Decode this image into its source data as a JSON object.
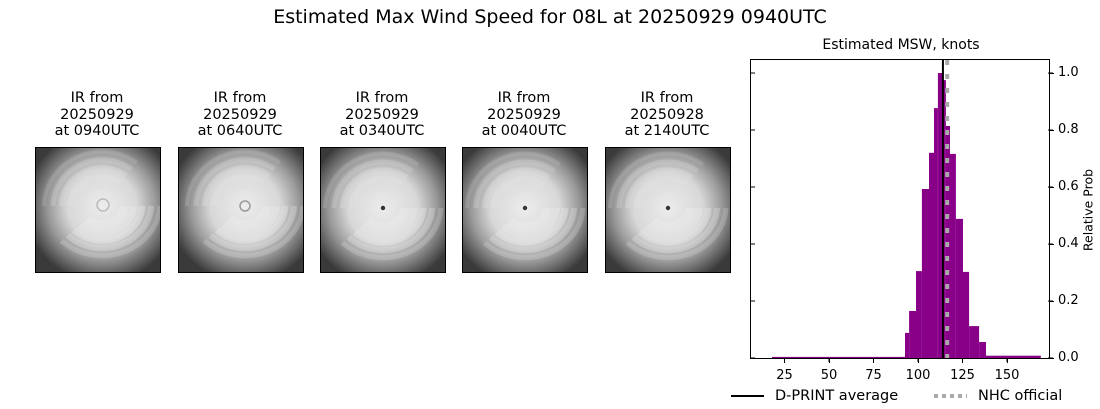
{
  "figure": {
    "title": "Estimated Max Wind Speed for 08L at 20250929 0940UTC"
  },
  "ir_panels": [
    {
      "line1": "IR from",
      "line2": "20250929",
      "line3": "at 0940UTC",
      "eye": "cloudy"
    },
    {
      "line1": "IR from",
      "line2": "20250929",
      "line3": "at 0640UTC",
      "eye": "faint"
    },
    {
      "line1": "IR from",
      "line2": "20250929",
      "line3": "at 0340UTC",
      "eye": "pinhole"
    },
    {
      "line1": "IR from",
      "line2": "20250929",
      "line3": "at 0040UTC",
      "eye": "pinhole"
    },
    {
      "line1": "IR from",
      "line2": "20250928",
      "line3": "at 2140UTC",
      "eye": "pinhole"
    }
  ],
  "legend": {
    "dprint_label": "D-PRINT average",
    "nhc_label": "NHC official"
  },
  "colors": {
    "bar": "#880088",
    "dprint_line": "#000000",
    "nhc_line": "#aaaaaa"
  },
  "chart_data": {
    "type": "bar",
    "title": "Estimated MSW, knots",
    "xlabel": "",
    "ylabel": "Relative Prob",
    "xlim": [
      8,
      178
    ],
    "ylim": [
      0,
      1.05
    ],
    "xticks": [
      25,
      50,
      75,
      100,
      125,
      150
    ],
    "yticks": [
      0.0,
      0.2,
      0.4,
      0.6,
      0.8,
      1.0
    ],
    "ytick_labels": [
      "0.0",
      "0.2",
      "0.4",
      "0.6",
      "0.8",
      "1.0"
    ],
    "yaxis_position": "right",
    "grid": false,
    "legend_position": "below",
    "bins": [
      {
        "x0": 18.0,
        "x1": 92.7,
        "value": 0.004
      },
      {
        "x0": 92.7,
        "x1": 95.0,
        "value": 0.088
      },
      {
        "x0": 95.0,
        "x1": 98.9,
        "value": 0.165
      },
      {
        "x0": 98.9,
        "x1": 102.2,
        "value": 0.305
      },
      {
        "x0": 102.2,
        "x1": 106.2,
        "value": 0.593
      },
      {
        "x0": 106.2,
        "x1": 109.0,
        "value": 0.72
      },
      {
        "x0": 109.0,
        "x1": 111.2,
        "value": 0.877
      },
      {
        "x0": 111.2,
        "x1": 113.5,
        "value": 1.0
      },
      {
        "x0": 113.5,
        "x1": 115.7,
        "value": 0.975
      },
      {
        "x0": 115.7,
        "x1": 118.0,
        "value": 0.814
      },
      {
        "x0": 118.0,
        "x1": 121.3,
        "value": 0.716
      },
      {
        "x0": 121.3,
        "x1": 125.3,
        "value": 0.488
      },
      {
        "x0": 125.3,
        "x1": 128.7,
        "value": 0.302
      },
      {
        "x0": 128.7,
        "x1": 134.3,
        "value": 0.112
      },
      {
        "x0": 134.3,
        "x1": 138.2,
        "value": 0.056
      },
      {
        "x0": 138.2,
        "x1": 169.0,
        "value": 0.008
      }
    ],
    "series": [
      {
        "name": "D-PRINT average",
        "type": "vline",
        "x": 114,
        "style": "solid",
        "color": "#000000"
      },
      {
        "name": "NHC official",
        "type": "vline",
        "x": 115,
        "style": "dotted",
        "color": "#aaaaaa"
      }
    ]
  }
}
